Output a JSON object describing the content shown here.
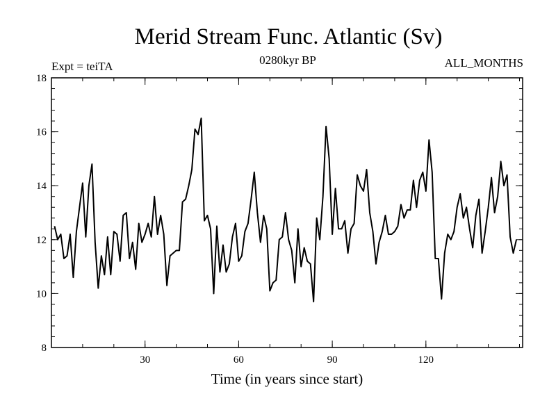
{
  "chart_data": {
    "type": "line",
    "title": "Merid Stream Func. Atlantic (Sv)",
    "subtitle_left": "Expt = teiTA",
    "subtitle_center": "0280kyr BP",
    "subtitle_right": "ALL_MONTHS",
    "xlabel": "Time (in years since start)",
    "ylabel": "",
    "xlim": [
      0,
      151
    ],
    "ylim": [
      8,
      18
    ],
    "x_major_ticks": [
      30,
      60,
      90,
      120
    ],
    "x_tick_labels": [
      "30",
      "60",
      "90",
      "120"
    ],
    "y_major_ticks": [
      8,
      10,
      12,
      14,
      16,
      18
    ],
    "y_tick_labels": [
      "8",
      "10",
      "12",
      "14",
      "16",
      "18"
    ],
    "x_minor_step": 10,
    "y_minor_step": 0.4,
    "grid": false,
    "series": [
      {
        "name": "Merid Stream Func. Atlantic",
        "values": [
          12.5,
          12.0,
          12.2,
          11.3,
          11.4,
          12.2,
          10.6,
          12.3,
          13.2,
          14.1,
          12.1,
          14.0,
          14.8,
          11.9,
          10.2,
          11.4,
          10.7,
          12.1,
          10.7,
          12.3,
          12.2,
          11.2,
          12.9,
          13.0,
          11.3,
          11.9,
          10.9,
          12.6,
          11.9,
          12.2,
          12.6,
          12.1,
          13.6,
          12.2,
          12.9,
          12.2,
          10.3,
          11.4,
          11.5,
          11.6,
          11.6,
          13.4,
          13.5,
          14.0,
          14.6,
          16.1,
          15.9,
          16.5,
          12.7,
          12.9,
          12.4,
          10.0,
          12.5,
          10.8,
          11.8,
          10.8,
          11.1,
          12.1,
          12.6,
          11.2,
          11.4,
          12.3,
          12.6,
          13.5,
          14.5,
          13.0,
          11.9,
          12.9,
          12.4,
          10.1,
          10.4,
          10.5,
          12.0,
          12.1,
          13.0,
          12.0,
          11.6,
          10.4,
          12.4,
          11.0,
          11.7,
          11.2,
          11.1,
          9.7,
          12.8,
          12.0,
          13.6,
          16.2,
          15.0,
          12.2,
          13.9,
          12.4,
          12.4,
          12.7,
          11.5,
          12.4,
          12.6,
          14.4,
          14.0,
          13.8,
          14.6,
          13.0,
          12.3,
          11.1,
          11.9,
          12.3,
          12.9,
          12.2,
          12.2,
          12.3,
          12.5,
          13.3,
          12.8,
          13.1,
          13.1,
          14.2,
          13.2,
          14.2,
          14.5,
          13.8,
          15.7,
          14.5,
          11.3,
          11.3,
          9.8,
          11.5,
          12.2,
          12.0,
          12.3,
          13.2,
          13.7,
          12.8,
          13.2,
          12.4,
          11.7,
          12.9,
          13.5,
          11.5,
          12.3,
          13.2,
          14.3,
          13.0,
          13.6,
          14.9,
          14.0,
          14.4,
          12.1,
          11.5,
          12.0
        ]
      }
    ]
  }
}
